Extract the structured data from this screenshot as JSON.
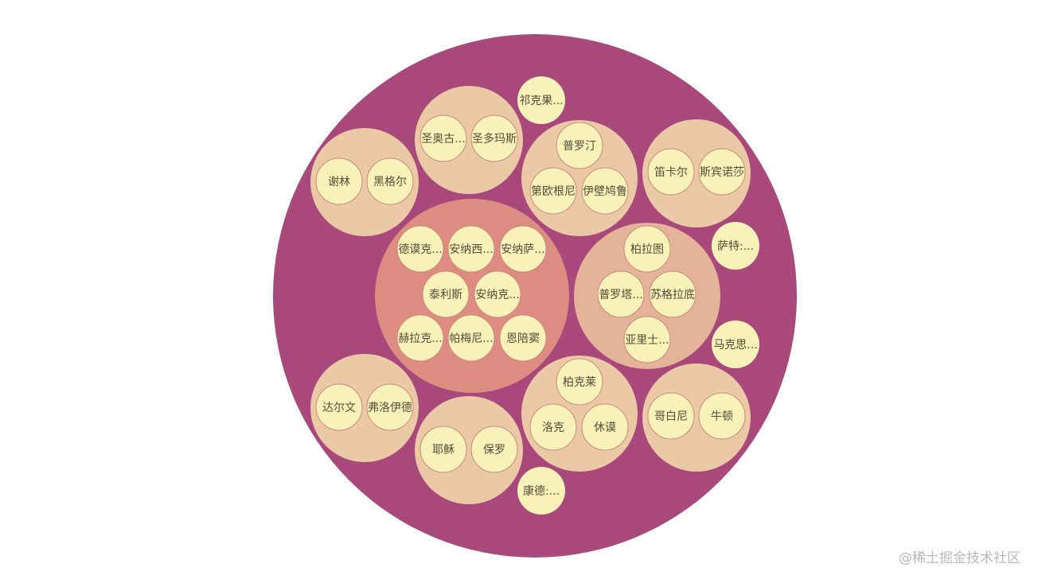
{
  "colors": {
    "root": "#a9497b",
    "group": "#ebc8a6",
    "center_group": "#dc8c80",
    "plato_group": "#e4b399",
    "leaf": "#f8f1b8",
    "leaf_stroke": "#c98b7a"
  },
  "groups": [
    {
      "id": "g-augustine",
      "items": [
        "圣奥古...",
        "圣多玛斯"
      ]
    },
    {
      "id": "g-protagoras",
      "items": [
        "普罗汀",
        "第欧根尼",
        "伊壁鸠鲁"
      ]
    },
    {
      "id": "g-descartes",
      "items": [
        "笛卡尔",
        "斯宾诺莎"
      ]
    },
    {
      "id": "g-schelling",
      "items": [
        "谢林",
        "黑格尔"
      ]
    },
    {
      "id": "g-center",
      "items": [
        "德谟克...",
        "安纳西...",
        "安纳萨...",
        "泰利斯",
        "安纳克...",
        "赫拉克...",
        "帕梅尼...",
        "恩陪窦"
      ]
    },
    {
      "id": "g-plato",
      "items": [
        "柏拉图",
        "普罗塔...",
        "苏格拉底",
        "亚里士..."
      ]
    },
    {
      "id": "g-darwin",
      "items": [
        "达尔文",
        "弗洛伊德"
      ]
    },
    {
      "id": "g-berkeley",
      "items": [
        "柏克莱",
        "洛克",
        "休谟"
      ]
    },
    {
      "id": "g-jesus",
      "items": [
        "耶稣",
        "保罗"
      ]
    },
    {
      "id": "g-copernicus",
      "items": [
        "哥白尼",
        "牛顿"
      ]
    }
  ],
  "singles": [
    "祁克果...",
    "萨特:...",
    "马克思...",
    "康德:..."
  ],
  "watermark": "@稀土掘金技术社区"
}
